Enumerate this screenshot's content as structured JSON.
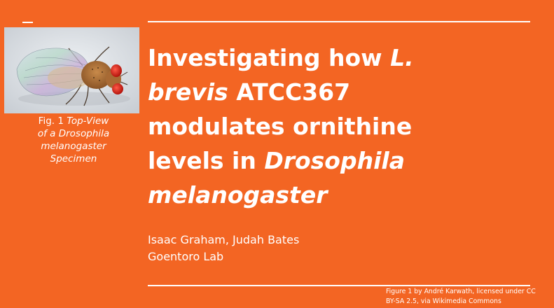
{
  "slide": {
    "figure_caption": {
      "label": "Fig. 1",
      "italic_line1": "Top-View",
      "italic_line2": "of a Drosophila",
      "italic_line3": "melanogaster",
      "italic_line4": "Specimen"
    },
    "title": {
      "p1": "Investigating how ",
      "p2_italic": "L.",
      "p3_italic": "brevis",
      "p4": " ATCC367",
      "p5": "modulates ornithine",
      "p6": "levels in ",
      "p7_italic": "Drosophila",
      "p8_italic": "melanogaster"
    },
    "authors": "Isaac Graham, Judah Bates",
    "lab": "Goentoro Lab",
    "credit_line1": "Figure 1 by André Karwath, licensed under CC",
    "credit_line2": "BY-SA 2.5, via Wikimedia Commons"
  },
  "colors": {
    "background": "#f36523",
    "text": "#ffffff"
  }
}
